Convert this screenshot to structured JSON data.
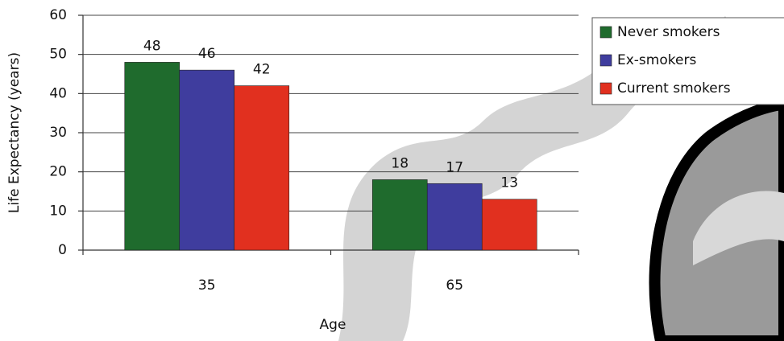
{
  "chart_data": {
    "type": "bar",
    "x_label": "Age",
    "y_label": "Life Expectancy (years)",
    "categories": [
      "35",
      "65"
    ],
    "series": [
      {
        "name": "Never smokers",
        "color": "#1f6b2d",
        "values": [
          48,
          18
        ]
      },
      {
        "name": "Ex-smokers",
        "color": "#3f3d9e",
        "values": [
          46,
          17
        ]
      },
      {
        "name": "Current smokers",
        "color": "#e1301f",
        "values": [
          42,
          13
        ]
      }
    ],
    "ylim": [
      0,
      60
    ],
    "yticks": [
      0,
      10,
      20,
      30,
      40,
      50,
      60
    ],
    "grid": true,
    "legend": "upper right"
  }
}
